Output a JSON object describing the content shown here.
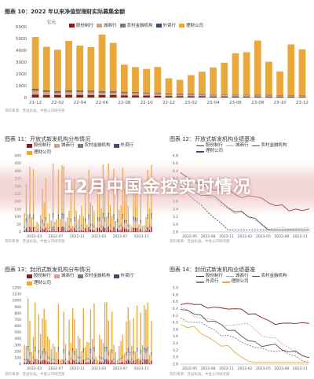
{
  "banner": {
    "text": "12月中国金控实时情况"
  },
  "chart_data": [
    {
      "type": "bar",
      "title": "图表 10：2022 年以来净值型理财实际募集金额",
      "ylabel": "亿元",
      "ylim": [
        0,
        6000
      ],
      "yticks": [
        0,
        1000,
        2000,
        3000,
        4000,
        5000,
        6000
      ],
      "stacked": true,
      "categories": [
        "21-12",
        "22-01",
        "22-02",
        "22-03",
        "22-04",
        "22-05",
        "22-06",
        "22-07",
        "22-08",
        "22-09",
        "22-10",
        "22-11",
        "22-12",
        "23-01",
        "23-02",
        "23-03",
        "23-04",
        "23-05",
        "23-06",
        "23-07",
        "23-08",
        "23-09",
        "23-10",
        "23-11",
        "23-12"
      ],
      "x_tick_labels": [
        "21-12",
        "22-02",
        "22-04",
        "22-06",
        "22-08",
        "22-10",
        "22-12",
        "23-02",
        "23-04",
        "23-06",
        "23-08",
        "23-10",
        "23-12"
      ],
      "series": [
        {
          "name": "股份制行",
          "color": "#8b1a1a",
          "values": [
            250,
            200,
            200,
            220,
            220,
            200,
            200,
            200,
            180,
            180,
            160,
            150,
            120,
            100,
            100,
            100,
            90,
            90,
            90,
            80,
            80,
            80,
            70,
            70,
            60
          ]
        },
        {
          "name": "城商行",
          "color": "#d9a080",
          "values": [
            300,
            250,
            200,
            220,
            230,
            220,
            200,
            200,
            180,
            180,
            160,
            150,
            130,
            120,
            120,
            110,
            100,
            100,
            100,
            100,
            90,
            90,
            80,
            80,
            80
          ]
        },
        {
          "name": "农村金融机构",
          "color": "#7a7a7a",
          "values": [
            120,
            100,
            100,
            110,
            110,
            100,
            90,
            90,
            80,
            80,
            70,
            60,
            50,
            50,
            50,
            50,
            40,
            40,
            40,
            40,
            40,
            40,
            30,
            30,
            30
          ]
        },
        {
          "name": "外资行",
          "color": "#3b4c7a",
          "values": [
            60,
            50,
            50,
            50,
            50,
            50,
            40,
            40,
            40,
            40,
            30,
            30,
            30,
            30,
            30,
            30,
            20,
            20,
            20,
            20,
            20,
            20,
            20,
            20,
            20
          ]
        },
        {
          "name": "理财公司",
          "color": "#e9a83b",
          "values": [
            4400,
            3700,
            3500,
            4200,
            3800,
            3700,
            4800,
            4100,
            2300,
            2100,
            2000,
            2200,
            1300,
            1200,
            1600,
            1900,
            2300,
            2700,
            3500,
            3600,
            4600,
            2800,
            2000,
            4300,
            3900
          ]
        }
      ],
      "source": "资料来源：普益标准，中金公司研究部"
    },
    {
      "type": "bar",
      "title": "图表 11：开放式新发机构分布情况",
      "ylim": [
        0,
        500
      ],
      "yticks": [
        0,
        50,
        100,
        150,
        200,
        250,
        300,
        350,
        400,
        450,
        500
      ],
      "x_tick_labels": [
        "2022-03",
        "2022-07",
        "2022-11",
        "2023-03",
        "2023-07",
        "2023-11"
      ],
      "series": [
        {
          "name": "股份制行",
          "color": "#8b1a1a"
        },
        {
          "name": "城商行",
          "color": "#d9a080"
        },
        {
          "name": "农村金融机构",
          "color": "#7a7a7a"
        },
        {
          "name": "外资行",
          "color": "#3b4c7a"
        },
        {
          "name": "理财公司",
          "color": "#e9a83b"
        }
      ],
      "source": "资料来源：普益标准，中金公司研究部"
    },
    {
      "type": "line",
      "title": "图表 12：开放式新发机构业绩基准",
      "ylim": [
        2.8,
        4.8
      ],
      "yticks": [
        2.8,
        3.0,
        3.2,
        3.4,
        3.6,
        3.8,
        4.0,
        4.2,
        4.4,
        4.6,
        4.8
      ],
      "x_tick_labels": [
        "2022-05",
        "2022-08",
        "2022-11",
        "2023-02",
        "2023-05",
        "2023-08",
        "2023-11"
      ],
      "series": [
        {
          "name": "股份制行",
          "color": "#8b1a1a"
        },
        {
          "name": "城商行",
          "color": "#d9a080"
        },
        {
          "name": "农村金融机构",
          "color": "#555555"
        },
        {
          "name": "理财公司",
          "color": "#3b4c7a"
        }
      ],
      "source": "资料来源：普益标准，中金公司研究部"
    },
    {
      "type": "bar",
      "title": "图表 13：封闭式新发机构分布情况",
      "ylim": [
        0,
        1200
      ],
      "yticks": [
        0,
        100,
        200,
        300,
        400,
        500,
        600,
        700,
        800,
        900,
        1000,
        1100,
        1200
      ],
      "x_tick_labels": [
        "2022-03",
        "2022-07",
        "2022-11",
        "2023-03",
        "2023-07",
        "2023-11"
      ],
      "series": [
        {
          "name": "股份制行",
          "color": "#8b1a1a"
        },
        {
          "name": "城商行",
          "color": "#d9a080"
        },
        {
          "name": "农村金融机构",
          "color": "#7a7a7a"
        },
        {
          "name": "外资行",
          "color": "#3b4c7a"
        },
        {
          "name": "理财公司",
          "color": "#e9a83b"
        }
      ],
      "source": "资料来源：普益标准，中金公司研究部"
    },
    {
      "type": "line",
      "title": "图表 14：封闭式新发机构业绩基准",
      "ylim": [
        2.8,
        5.0
      ],
      "yticks": [
        2.8,
        3.0,
        3.2,
        3.4,
        3.6,
        3.8,
        4.0,
        4.2,
        4.4,
        4.6,
        4.8,
        5.0
      ],
      "x_tick_labels": [
        "2022-05",
        "2022-08",
        "2022-11",
        "2023-02",
        "2023-05",
        "2023-08",
        "2023-11"
      ],
      "series": [
        {
          "name": "股份制行",
          "color": "#8b1a1a"
        },
        {
          "name": "城商行",
          "color": "#d9a080"
        },
        {
          "name": "农村金融机构",
          "color": "#555555"
        },
        {
          "name": "外资行",
          "color": "#7f7f7f"
        },
        {
          "name": "理财公司",
          "color": "#e9a83b"
        }
      ],
      "source": "资料来源：普益标准，中金公司研究部"
    }
  ]
}
